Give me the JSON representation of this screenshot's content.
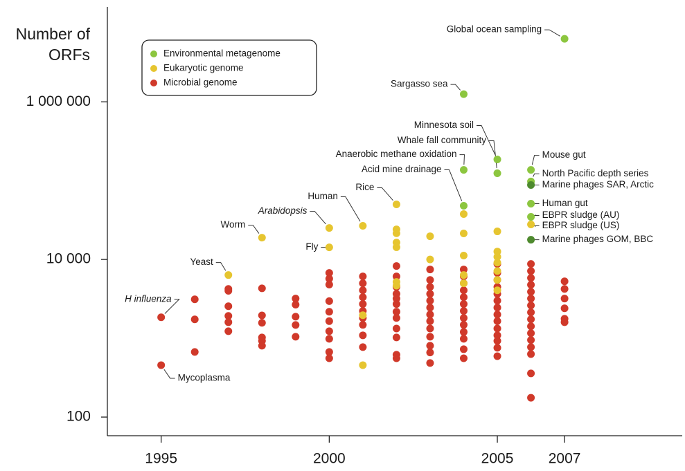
{
  "chart_data": {
    "type": "scatter",
    "y_label": "Number of ORFs",
    "log_y": true,
    "xlim": [
      1993.4,
      2010.5
    ],
    "xticks": [
      1995,
      2000,
      2005,
      2007
    ],
    "ylim": [
      58,
      16000000
    ],
    "yticks": [
      100,
      {
        "value": 10000,
        "label": "10 000"
      },
      {
        "value": 1000000,
        "label": "1 000 000"
      }
    ],
    "legend": "top-left",
    "series": [
      {
        "name": "Environmental metagenome",
        "color": "#8cc63f",
        "x": [
          2007,
          2004,
          2005,
          2005,
          2004,
          2004,
          2006,
          2006,
          2006,
          2006,
          2006,
          2006
        ],
        "values": [
          6300000,
          1250000,
          186000,
          124000,
          137000,
          48000,
          137000,
          97500,
          88100,
          51000,
          34700,
          17800
        ],
        "colors": [
          "#8cc63f",
          "#8cc63f",
          "#8cc63f",
          "#8cc63f",
          "#8cc63f",
          "#8cc63f",
          "#8cc63f",
          "#8cc63f",
          "#4e8a2e",
          "#8cc63f",
          "#8cc63f",
          "#4e8a2e"
        ],
        "point_labels": [
          "Global ocean sampling",
          "Sargasso sea",
          "Minnesota soil",
          "Whale fall community",
          "Anaerobic methane oxidation",
          "Acid mine drainage",
          "Mouse gut",
          "North Pacific depth series",
          "Marine phages SAR, Arctic",
          "Human gut",
          "EBPR sludge (AU)",
          "Marine phages GOM, BBC"
        ]
      },
      {
        "name": "Eukaryotic genome",
        "color": "#e6c530",
        "x": [
          1997,
          1998,
          2000,
          2000,
          2001,
          2002,
          2006,
          2001,
          2001,
          2002,
          2002,
          2002,
          2002,
          2002,
          2002,
          2003,
          2003,
          2004,
          2004,
          2004,
          2004,
          2004,
          2005,
          2005,
          2005,
          2005,
          2005,
          2005,
          2005
        ],
        "values": [
          6340,
          18900,
          25100,
          14250,
          26700,
          50000,
          27800,
          1960,
          456,
          24100,
          21500,
          16400,
          14300,
          5180,
          4650,
          19700,
          10000,
          37700,
          21400,
          11200,
          6340,
          4980,
          22700,
          12600,
          10800,
          9100,
          7130,
          5500,
          4060
        ],
        "point_labels": [
          "Yeast",
          "Worm",
          "Arabidopsis",
          "Fly",
          "Human",
          "Rice",
          "EBPR sludge (US)",
          null,
          null,
          null,
          null,
          null,
          null,
          null,
          null,
          null,
          null,
          null,
          null,
          null,
          null,
          null,
          null,
          null,
          null,
          null,
          null,
          null,
          null
        ]
      },
      {
        "name": "Microbial genome",
        "color": "#d0392a",
        "x": [
          1995,
          1995,
          1996,
          1996,
          1996,
          1997,
          1997,
          1997,
          1997,
          1997,
          1997,
          1998,
          1998,
          1998,
          1998,
          1998,
          1998,
          1999,
          1999,
          1999,
          1999,
          1999,
          2000,
          2000,
          2000,
          2000,
          2000,
          2000,
          2000,
          2000,
          2000,
          2000,
          2001,
          2001,
          2001,
          2001,
          2001,
          2001,
          2001,
          2001,
          2001,
          2001,
          2002,
          2002,
          2002,
          2002,
          2002,
          2002,
          2002,
          2002,
          2002,
          2002,
          2002,
          2002,
          2003,
          2003,
          2003,
          2003,
          2003,
          2003,
          2003,
          2003,
          2003,
          2003,
          2003,
          2003,
          2003,
          2004,
          2004,
          2004,
          2004,
          2004,
          2004,
          2004,
          2004,
          2004,
          2004,
          2004,
          2004,
          2004,
          2005,
          2005,
          2005,
          2005,
          2005,
          2005,
          2005,
          2005,
          2005,
          2005,
          2005,
          2005,
          2005,
          2005,
          2006,
          2006,
          2006,
          2006,
          2006,
          2006,
          2006,
          2006,
          2006,
          2006,
          2006,
          2006,
          2006,
          2006,
          2006,
          2006,
          2007,
          2007,
          2007,
          2007,
          2007,
          2007
        ],
        "values": [
          1845,
          456,
          3120,
          1738,
          670,
          4230,
          4000,
          2550,
          1920,
          1600,
          1230,
          4300,
          1950,
          1570,
          1025,
          927,
          804,
          3190,
          2670,
          1880,
          1475,
          1045,
          6740,
          5700,
          4800,
          2960,
          2170,
          1650,
          1230,
          985,
          670,
          558,
          6090,
          4980,
          4060,
          3320,
          2720,
          2220,
          1810,
          1480,
          1090,
          773,
          8250,
          6090,
          4480,
          3660,
          3190,
          2720,
          2170,
          1810,
          1330,
          1025,
          618,
          558,
          7470,
          5500,
          4480,
          3660,
          3000,
          2450,
          2000,
          1650,
          1330,
          1045,
          804,
          660,
          485,
          7470,
          6090,
          4980,
          4060,
          3320,
          2720,
          2220,
          1810,
          1480,
          1200,
          985,
          726,
          558,
          8770,
          6740,
          5500,
          4480,
          3660,
          3000,
          2450,
          2000,
          1650,
          1330,
          1090,
          927,
          757,
          592,
          8770,
          7130,
          5830,
          4770,
          3890,
          3190,
          2610,
          2130,
          1740,
          1420,
          1160,
          950,
          773,
          630,
          358,
          176,
          5280,
          4230,
          3190,
          2400,
          1770,
          1600
        ],
        "point_labels": [
          "H influenza",
          "Mycoplasma",
          null,
          null,
          null,
          null,
          null,
          null,
          null,
          null,
          null,
          null,
          null,
          null,
          null,
          null,
          null,
          null,
          null,
          null,
          null,
          null,
          null,
          null,
          null,
          null,
          null,
          null,
          null,
          null,
          null,
          null,
          null,
          null,
          null,
          null,
          null,
          null,
          null,
          null,
          null,
          null,
          null,
          null,
          null,
          null,
          null,
          null,
          null,
          null,
          null,
          null,
          null,
          null,
          null,
          null,
          null,
          null,
          null,
          null,
          null,
          null,
          null,
          null,
          null,
          null,
          null,
          null,
          null,
          null,
          null,
          null,
          null,
          null,
          null,
          null,
          null,
          null,
          null,
          null,
          null,
          null,
          null,
          null,
          null,
          null,
          null,
          null,
          null,
          null,
          null,
          null,
          null,
          null,
          null,
          null,
          null,
          null,
          null,
          null,
          null,
          null,
          null,
          null,
          null,
          null,
          null,
          null,
          null,
          null,
          null,
          null,
          null,
          null,
          null,
          null
        ]
      }
    ]
  }
}
